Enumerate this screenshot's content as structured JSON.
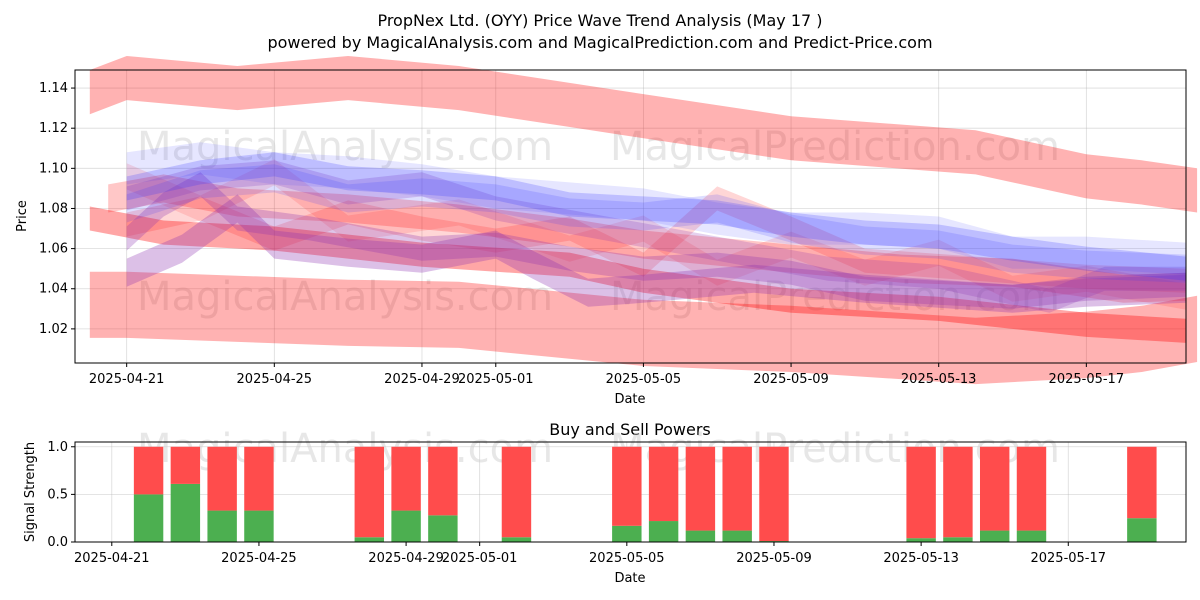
{
  "title_line1": "PropNex Ltd. (OYY) Price Wave Trend Analysis (May 17 )",
  "title_line2": "powered by MagicalAnalysis.com and MagicalPrediction.com and Predict-Price.com",
  "watermarks": [
    "MagicalAnalysis.com",
    "MagicalPrediction.com"
  ],
  "colors": {
    "red_band": "#ff0000",
    "blue_band": "#0000ff",
    "buy": "#4caf50",
    "sell": "#ff4c4c"
  },
  "chart_data": [
    {
      "type": "area",
      "name": "price-wave-chart",
      "title": "",
      "xlabel": "Date",
      "ylabel": "Price",
      "x_tick_labels": [
        "2025-04-21",
        "2025-04-25",
        "2025-04-29",
        "2025-05-01",
        "2025-05-05",
        "2025-05-09",
        "2025-05-13",
        "2025-05-17"
      ],
      "y_tick_labels": [
        "1.02",
        "1.04",
        "1.06",
        "1.08",
        "1.10",
        "1.12",
        "1.14"
      ],
      "ylim": [
        1.003,
        1.149
      ],
      "xlim_days": [
        -1.4,
        28.7
      ],
      "grid": true,
      "x_day_offsets_note": "day offsets from 2025-04-21",
      "series": [
        {
          "name": "red-band-top",
          "color": "red",
          "opacity": 0.3,
          "width": 0.022,
          "x": [
            -1,
            0,
            3,
            6,
            9,
            14,
            18,
            23,
            26,
            27.5,
            29
          ],
          "values": [
            1.138,
            1.145,
            1.14,
            1.145,
            1.14,
            1.126,
            1.115,
            1.108,
            1.096,
            1.093,
            1.089
          ]
        },
        {
          "name": "red-band-bottom",
          "color": "red",
          "opacity": 0.3,
          "width": 0.033,
          "x": [
            -1,
            0,
            3,
            6,
            9,
            14,
            18,
            23,
            26,
            27.5,
            29
          ],
          "values": [
            1.032,
            1.032,
            1.03,
            1.028,
            1.027,
            1.018,
            1.015,
            1.009,
            1.012,
            1.015,
            1.02
          ]
        },
        {
          "name": "red-band-lower-mid",
          "color": "red",
          "opacity": 0.35,
          "width": 0.012,
          "x": [
            -1,
            1,
            4,
            8,
            12,
            14,
            18,
            22,
            26,
            28.7
          ],
          "values": [
            1.075,
            1.068,
            1.065,
            1.057,
            1.052,
            1.044,
            1.034,
            1.03,
            1.022,
            1.019
          ]
        },
        {
          "name": "red-band-mid-1",
          "color": "red",
          "opacity": 0.22,
          "width": 0.014,
          "x": [
            -0.5,
            1,
            3,
            6,
            9,
            12,
            14,
            18,
            21,
            24,
            27,
            28.7
          ],
          "values": [
            1.085,
            1.09,
            1.083,
            1.08,
            1.075,
            1.068,
            1.062,
            1.055,
            1.05,
            1.048,
            1.04,
            1.041
          ]
        },
        {
          "name": "red-band-mid-2",
          "color": "red",
          "opacity": 0.16,
          "width": 0.012,
          "x": [
            0,
            2,
            4,
            6,
            8,
            10,
            12,
            14,
            16,
            18,
            20,
            23,
            26,
            28.7
          ],
          "values": [
            1.072,
            1.08,
            1.065,
            1.078,
            1.07,
            1.064,
            1.07,
            1.052,
            1.085,
            1.07,
            1.054,
            1.05,
            1.046,
            1.044
          ]
        },
        {
          "name": "red-band-mid-3",
          "color": "red",
          "opacity": 0.12,
          "width": 0.013,
          "x": [
            0,
            2,
            4,
            6,
            9,
            12,
            14,
            16,
            18,
            20,
            22,
            24,
            26,
            28.7
          ],
          "values": [
            1.096,
            1.08,
            1.098,
            1.07,
            1.078,
            1.06,
            1.07,
            1.048,
            1.062,
            1.048,
            1.058,
            1.04,
            1.045,
            1.036
          ]
        },
        {
          "name": "purple-band-1",
          "color": "purple",
          "opacity": 0.28,
          "width": 0.012,
          "x": [
            0,
            1,
            2,
            3,
            5,
            8,
            10,
            12,
            14,
            16,
            18,
            20,
            24,
            26,
            28.7
          ],
          "values": [
            1.065,
            1.082,
            1.092,
            1.075,
            1.07,
            1.06,
            1.062,
            1.055,
            1.05,
            1.052,
            1.048,
            1.04,
            1.036,
            1.04,
            1.042
          ]
        },
        {
          "name": "purple-band-2",
          "color": "purple",
          "opacity": 0.3,
          "width": 0.014,
          "x": [
            0,
            1.5,
            3,
            4,
            6,
            8,
            10,
            11,
            12.5,
            14,
            17,
            20,
            24,
            26,
            28.7
          ],
          "values": [
            1.048,
            1.06,
            1.08,
            1.062,
            1.058,
            1.055,
            1.062,
            1.052,
            1.038,
            1.04,
            1.045,
            1.04,
            1.035,
            1.038,
            1.04
          ]
        },
        {
          "name": "purple-band-3",
          "color": "purple",
          "opacity": 0.22,
          "width": 0.012,
          "x": [
            0,
            2,
            4,
            6,
            8,
            10,
            13,
            16,
            19,
            22,
            25,
            26.5,
            28.7
          ],
          "values": [
            1.085,
            1.095,
            1.098,
            1.088,
            1.092,
            1.08,
            1.07,
            1.06,
            1.05,
            1.046,
            1.034,
            1.045,
            1.045
          ]
        },
        {
          "name": "blue-band-1",
          "color": "blue",
          "opacity": 0.22,
          "width": 0.012,
          "x": [
            0,
            2,
            4,
            6,
            8,
            10,
            12,
            14,
            16,
            18,
            20,
            22,
            24,
            26,
            28.7
          ],
          "values": [
            1.09,
            1.098,
            1.102,
            1.095,
            1.093,
            1.09,
            1.082,
            1.08,
            1.078,
            1.072,
            1.068,
            1.066,
            1.06,
            1.055,
            1.05
          ]
        },
        {
          "name": "blue-band-2",
          "color": "blue",
          "opacity": 0.16,
          "width": 0.014,
          "x": [
            0,
            2,
            4,
            6,
            8,
            10,
            12,
            14,
            16,
            18,
            20,
            22,
            24,
            26,
            28.7
          ],
          "values": [
            1.08,
            1.092,
            1.095,
            1.085,
            1.088,
            1.085,
            1.078,
            1.076,
            1.08,
            1.07,
            1.064,
            1.062,
            1.055,
            1.052,
            1.05
          ]
        },
        {
          "name": "blue-band-3",
          "color": "blue",
          "opacity": 0.12,
          "width": 0.016,
          "x": [
            0,
            2,
            4,
            6,
            8,
            10,
            12,
            14,
            16,
            18,
            20,
            22,
            24,
            26,
            28.7
          ],
          "values": [
            1.1,
            1.105,
            1.1,
            1.098,
            1.094,
            1.088,
            1.085,
            1.082,
            1.075,
            1.07,
            1.07,
            1.068,
            1.058,
            1.058,
            1.055
          ]
        }
      ]
    },
    {
      "type": "bar",
      "name": "buy-sell-power-chart",
      "title": "Buy and Sell Powers",
      "xlabel": "Date",
      "ylabel": "Signal Strength",
      "x_tick_labels": [
        "2025-04-21",
        "2025-04-25",
        "2025-04-29",
        "2025-05-01",
        "2025-05-05",
        "2025-05-09",
        "2025-05-13",
        "2025-05-17"
      ],
      "y_tick_labels": [
        "0.0",
        "0.5",
        "1.0"
      ],
      "ylim": [
        0,
        1.05
      ],
      "grid": true,
      "categories": [
        "2025-04-22",
        "2025-04-23",
        "2025-04-24",
        "2025-04-25",
        "2025-04-28",
        "2025-04-29",
        "2025-04-30",
        "2025-05-02",
        "2025-05-05",
        "2025-05-06",
        "2025-05-07",
        "2025-05-08",
        "2025-05-09",
        "2025-05-13",
        "2025-05-14",
        "2025-05-15",
        "2025-05-16",
        "2025-05-19"
      ],
      "series": [
        {
          "name": "Buy",
          "values": [
            0.5,
            0.61,
            0.33,
            0.33,
            0.05,
            0.33,
            0.28,
            0.05,
            0.17,
            0.22,
            0.12,
            0.12,
            0.01,
            0.04,
            0.05,
            0.12,
            0.12,
            0.25
          ]
        },
        {
          "name": "Sell",
          "values": [
            0.5,
            0.39,
            0.67,
            0.67,
            0.95,
            0.67,
            0.72,
            0.95,
            0.83,
            0.78,
            0.88,
            0.88,
            0.99,
            0.96,
            0.95,
            0.88,
            0.88,
            0.75
          ]
        }
      ]
    }
  ]
}
